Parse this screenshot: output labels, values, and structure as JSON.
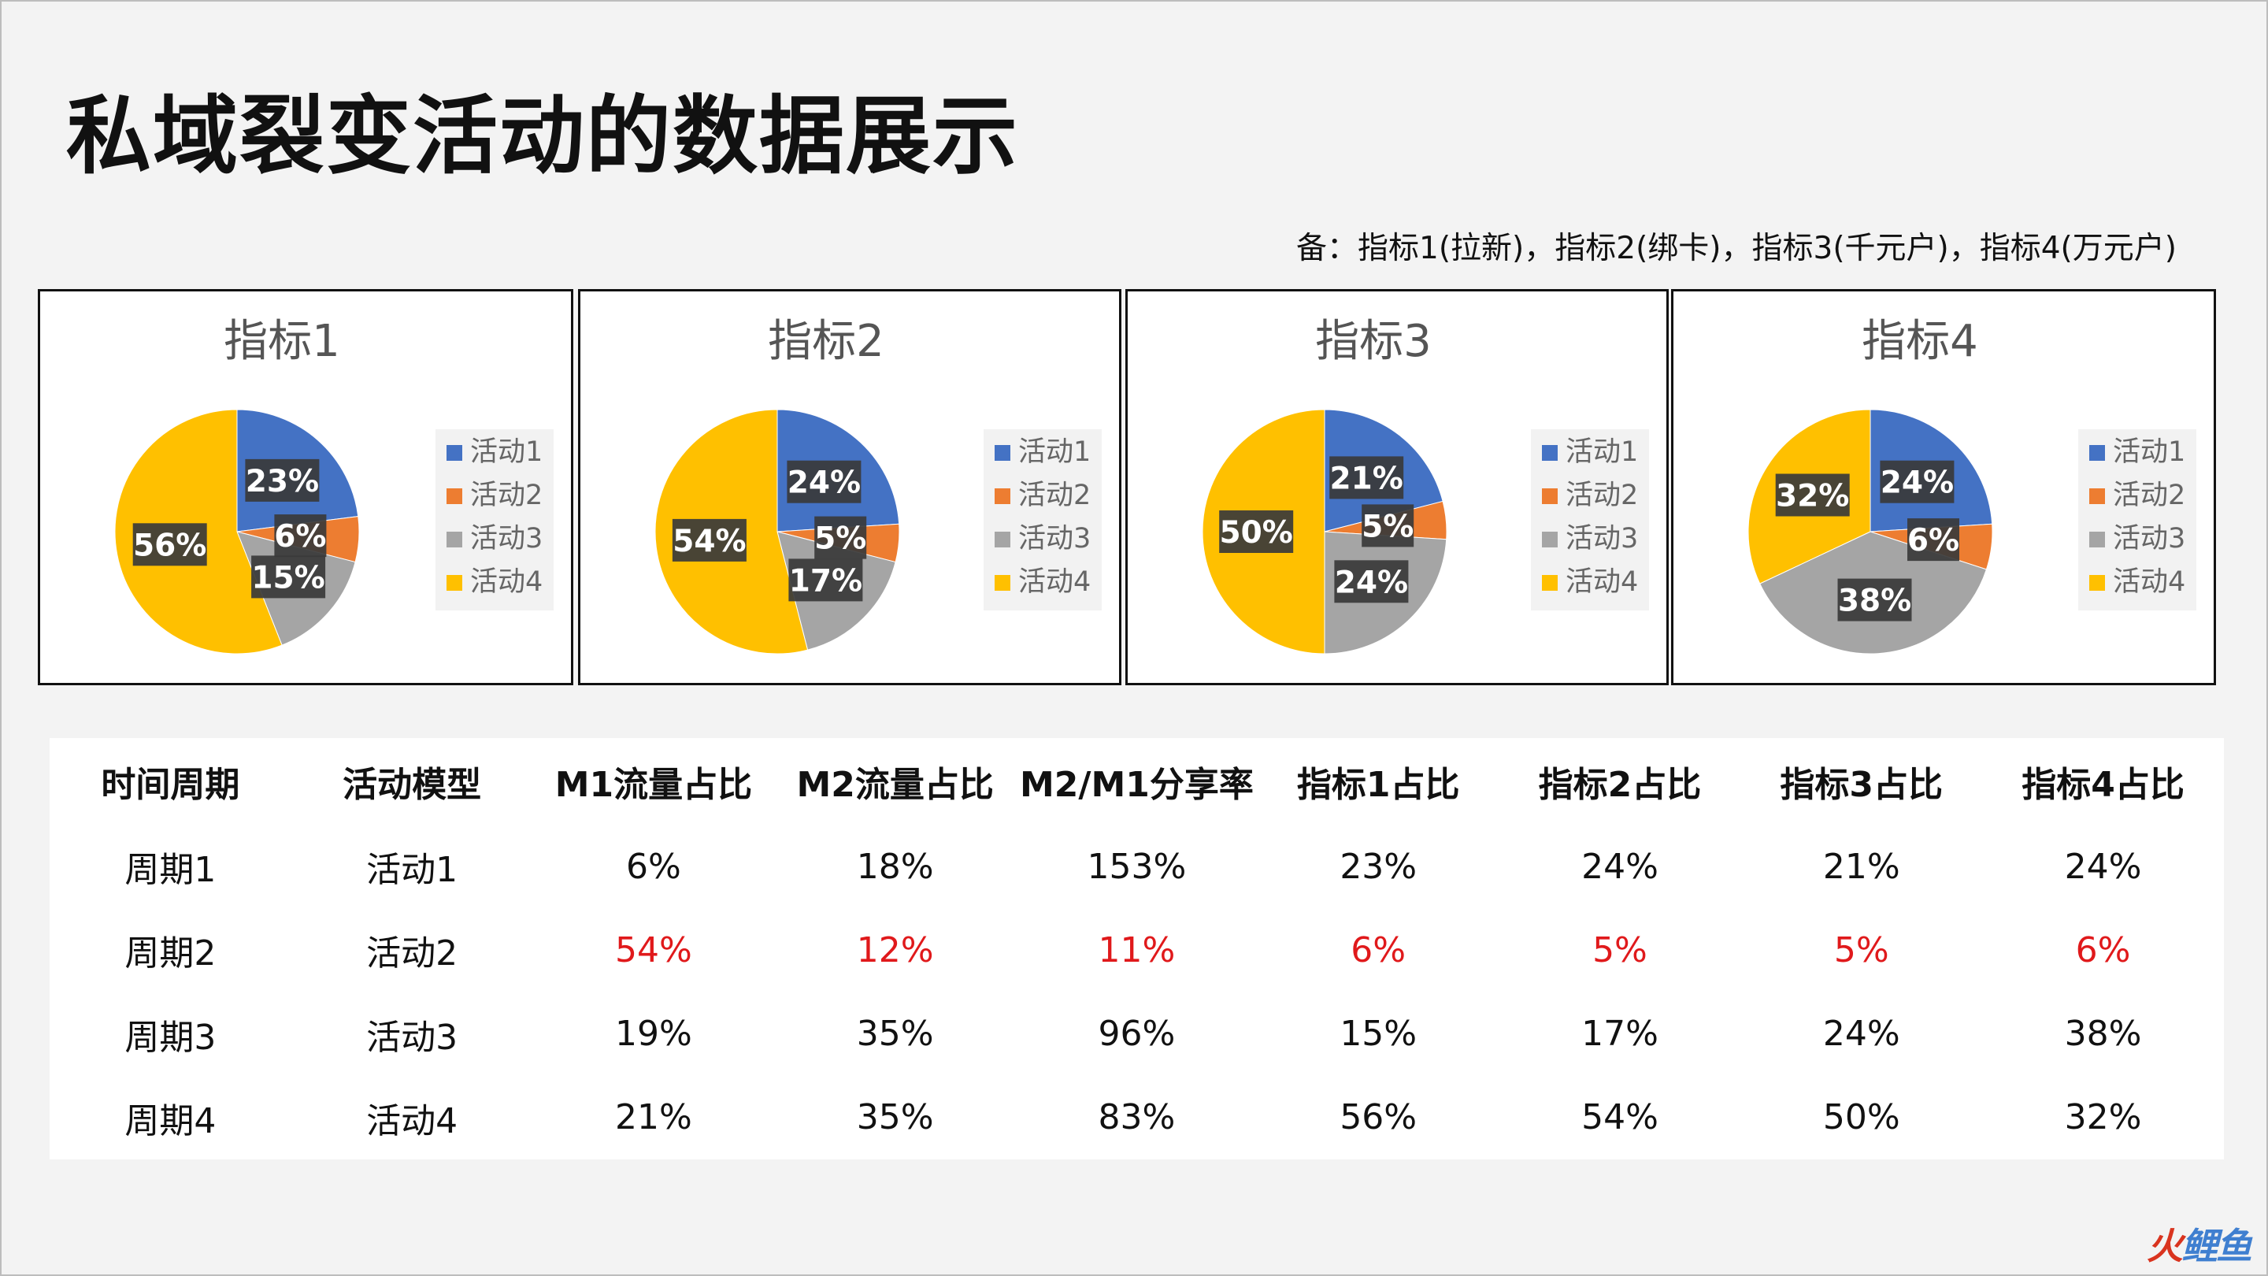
{
  "title": "私域裂变活动的数据展示",
  "note": "备：指标1(拉新)，指标2(绑卡)，指标3(千元户)，指标4(万元户)",
  "chart_data": [
    {
      "type": "pie",
      "title": "指标1",
      "categories": [
        "活动1",
        "活动2",
        "活动3",
        "活动4"
      ],
      "values": [
        23,
        6,
        15,
        56
      ],
      "value_labels": [
        "23%",
        "6%",
        "15%",
        "56%"
      ],
      "colors": [
        "#4472c4",
        "#ed7d31",
        "#a5a5a5",
        "#ffc000"
      ],
      "legend": "right"
    },
    {
      "type": "pie",
      "title": "指标2",
      "categories": [
        "活动1",
        "活动2",
        "活动3",
        "活动4"
      ],
      "values": [
        24,
        5,
        17,
        54
      ],
      "value_labels": [
        "24%",
        "5%",
        "17%",
        "54%"
      ],
      "colors": [
        "#4472c4",
        "#ed7d31",
        "#a5a5a5",
        "#ffc000"
      ],
      "legend": "right"
    },
    {
      "type": "pie",
      "title": "指标3",
      "categories": [
        "活动1",
        "活动2",
        "活动3",
        "活动4"
      ],
      "values": [
        21,
        5,
        24,
        50
      ],
      "value_labels": [
        "21%",
        "5%",
        "24%",
        "50%"
      ],
      "colors": [
        "#4472c4",
        "#ed7d31",
        "#a5a5a5",
        "#ffc000"
      ],
      "legend": "right"
    },
    {
      "type": "pie",
      "title": "指标4",
      "categories": [
        "活动1",
        "活动2",
        "活动3",
        "活动4"
      ],
      "values": [
        24,
        6,
        38,
        32
      ],
      "value_labels": [
        "24%",
        "6%",
        "38%",
        "32%"
      ],
      "colors": [
        "#4472c4",
        "#ed7d31",
        "#a5a5a5",
        "#ffc000"
      ],
      "legend": "right"
    },
    {
      "type": "table",
      "headers": [
        "时间周期",
        "活动模型",
        "M1流量占比",
        "M2流量占比",
        "M2/M1分享率",
        "指标1占比",
        "指标2占比",
        "指标3占比",
        "指标4占比"
      ],
      "rows": [
        [
          "周期1",
          "活动1",
          "6%",
          "18%",
          "153%",
          "23%",
          "24%",
          "21%",
          "24%"
        ],
        [
          "周期2",
          "活动2",
          "54%",
          "12%",
          "11%",
          "6%",
          "5%",
          "5%",
          "6%"
        ],
        [
          "周期3",
          "活动3",
          "19%",
          "35%",
          "96%",
          "15%",
          "17%",
          "24%",
          "38%"
        ],
        [
          "周期4",
          "活动4",
          "21%",
          "35%",
          "83%",
          "56%",
          "54%",
          "50%",
          "32%"
        ]
      ],
      "highlight_row": 1,
      "highlight_color": "#e0191b"
    }
  ],
  "watermark": {
    "part1": "火",
    "part2": "鲤鱼"
  }
}
